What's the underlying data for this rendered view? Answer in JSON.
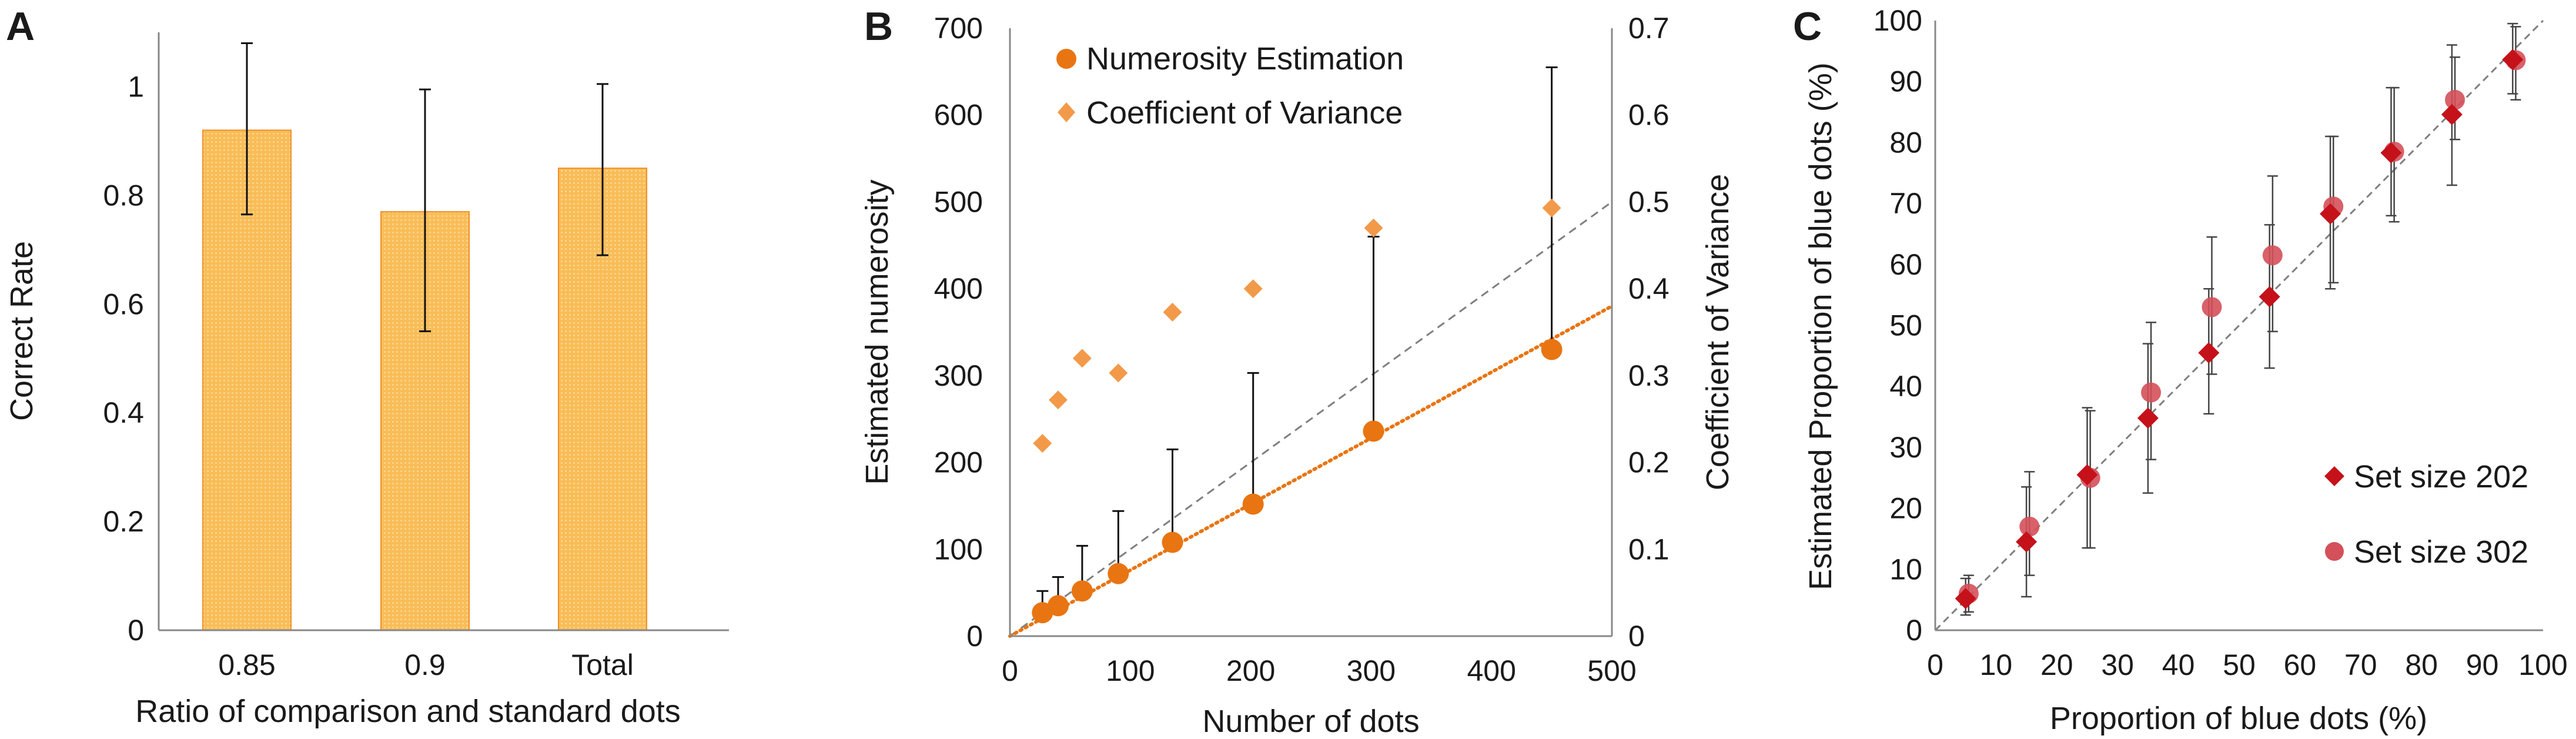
{
  "colors": {
    "bar_fill": "#f9bd58",
    "bar_edge": "#ef8f2a",
    "orange": "#e87511",
    "orange_light": "#f29a4a",
    "red_diamond": "#c5111a",
    "pink_circle": "#d4505a",
    "gray_dash": "#7f7f7f",
    "axis": "#888888"
  },
  "chart_data": [
    {
      "panel": "A",
      "type": "bar",
      "letter": "A",
      "categories": [
        "0.85",
        "0.9",
        "Total"
      ],
      "values": [
        0.92,
        0.77,
        0.85
      ],
      "err_upper": [
        1.08,
        0.995,
        1.005
      ],
      "err_lower": [
        0.765,
        0.55,
        0.69
      ],
      "xlabel": "Ratio of comparison and standard dots",
      "ylabel": "Correct Rate",
      "ylim": [
        0,
        1.1
      ],
      "yticks": [
        0,
        0.2,
        0.4,
        0.6,
        0.8,
        1
      ],
      "ytick_labels": [
        "0",
        "0.2",
        "0.4",
        "0.6",
        "0.8",
        "1"
      ]
    },
    {
      "panel": "B",
      "type": "scatter",
      "letter": "B",
      "xlabel": "Number of dots",
      "ylabel": "Estimated numerosity",
      "ylabel2": "Coefficient  of Variance",
      "xlim": [
        0,
        500
      ],
      "ylim": [
        0,
        700
      ],
      "y2lim": [
        0,
        0.7
      ],
      "xticks": [
        0,
        100,
        200,
        300,
        400,
        500
      ],
      "xtick_labels": [
        "0",
        "100",
        "200",
        "300",
        "400",
        "500"
      ],
      "yticks": [
        0,
        100,
        200,
        300,
        400,
        500,
        600,
        700
      ],
      "ytick_labels": [
        "0",
        "100",
        "200",
        "300",
        "400",
        "500",
        "600",
        "700"
      ],
      "y2ticks": [
        0,
        0.1,
        0.2,
        0.3,
        0.4,
        0.5,
        0.6,
        0.7
      ],
      "y2tick_labels": [
        "0",
        "0.1",
        "0.2",
        "0.3",
        "0.4",
        "0.5",
        "0.6",
        "0.7"
      ],
      "series": [
        {
          "name": "Numerosity Estimation",
          "marker": "circle",
          "x": [
            27,
            40,
            60,
            90,
            135,
            202,
            302,
            450
          ],
          "y": [
            27,
            35,
            52,
            72,
            108,
            152,
            236,
            330
          ],
          "err_upper": [
            52,
            68,
            104,
            144,
            215,
            303,
            460,
            655
          ]
        },
        {
          "name": "Coefficient of Variance",
          "marker": "diamond",
          "x": [
            27,
            40,
            60,
            90,
            135,
            202,
            302,
            450
          ],
          "y": [
            0.222,
            0.272,
            0.32,
            0.303,
            0.373,
            0.4,
            0.47,
            0.493
          ]
        }
      ],
      "reference_line": {
        "from": [
          0,
          0
        ],
        "to": [
          500,
          500
        ],
        "style": "dashed"
      },
      "fit_line": {
        "from": [
          0,
          0
        ],
        "to": [
          500,
          380
        ],
        "style": "dotted"
      }
    },
    {
      "panel": "C",
      "type": "scatter",
      "letter": "C",
      "xlabel": "Proportion of blue dots (%)",
      "ylabel": "Estimated Proportion of blue dots (%)",
      "xlim": [
        0,
        100
      ],
      "ylim": [
        0,
        100
      ],
      "xticks": [
        0,
        10,
        20,
        30,
        40,
        50,
        60,
        70,
        80,
        90,
        100
      ],
      "xtick_labels": [
        "0",
        "10",
        "20",
        "30",
        "40",
        "50",
        "60",
        "70",
        "80",
        "90",
        "100"
      ],
      "yticks": [
        0,
        10,
        20,
        30,
        40,
        50,
        60,
        70,
        80,
        90,
        100
      ],
      "ytick_labels": [
        "0",
        "10",
        "20",
        "30",
        "40",
        "50",
        "60",
        "70",
        "80",
        "90",
        "100"
      ],
      "series": [
        {
          "name": "Set size 202",
          "marker": "diamond",
          "x": [
            5,
            15,
            25,
            35,
            45,
            55,
            65,
            75,
            85,
            95
          ],
          "y": [
            5.2,
            14.5,
            25.5,
            34.8,
            45.5,
            54.7,
            68.3,
            78.3,
            84.6,
            93.6
          ],
          "err_lower": [
            2.5,
            5.5,
            13.5,
            22.5,
            35.5,
            43,
            56,
            68,
            73,
            88
          ],
          "err_upper": [
            8.5,
            23.5,
            36.5,
            47,
            56,
            66.5,
            81,
            89,
            96,
            99.5
          ]
        },
        {
          "name": "Set size 302",
          "marker": "circle",
          "x": [
            5.5,
            15.5,
            25.5,
            35.5,
            45.5,
            55.5,
            65.5,
            75.5,
            85.5,
            95.5
          ],
          "y": [
            6,
            17,
            25,
            39,
            53,
            61.5,
            69.5,
            78.5,
            87,
            93.5
          ],
          "err_lower": [
            3,
            9,
            13.5,
            28,
            42,
            49,
            57,
            67,
            80.5,
            87
          ],
          "err_upper": [
            9,
            26,
            36,
            50.5,
            64.5,
            74.5,
            81,
            89,
            94,
            99
          ]
        }
      ],
      "reference_line": {
        "from": [
          0,
          0
        ],
        "to": [
          100,
          100
        ],
        "style": "dashed"
      }
    }
  ]
}
